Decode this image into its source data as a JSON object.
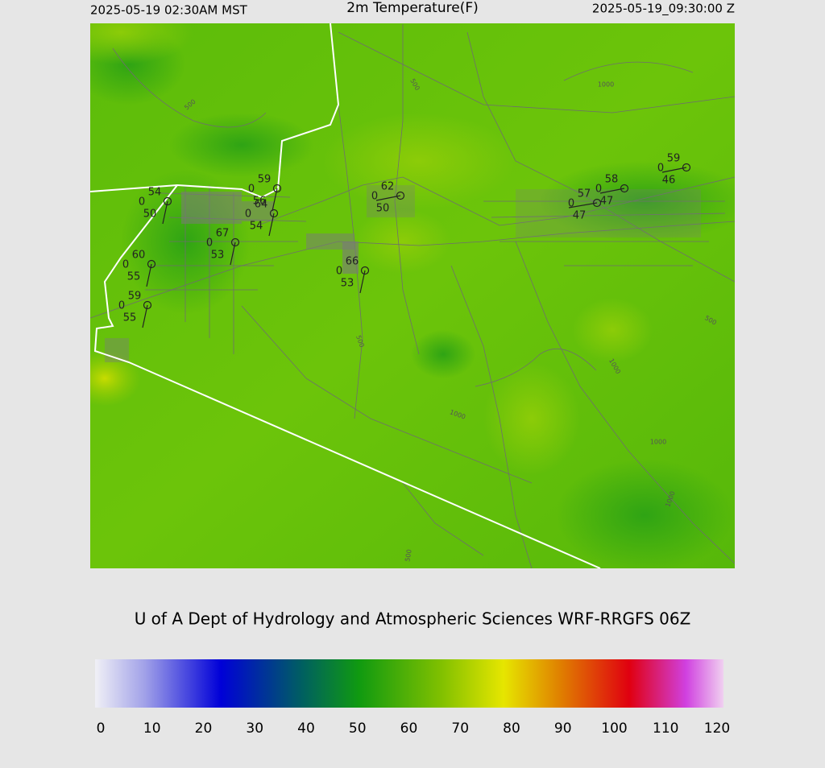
{
  "header": {
    "left": "2025-05-19 02:30AM MST",
    "title": "2m Temperature(F)",
    "right": "2025-05-19_09:30:00 Z"
  },
  "credit": "U of A Dept of Hydrology and Atmospheric Sciences WRF-RRGFS 06Z",
  "colorbar": {
    "ticks": [
      0,
      10,
      20,
      30,
      40,
      50,
      60,
      70,
      80,
      90,
      100,
      110,
      120
    ]
  },
  "stations": [
    {
      "temp": 54,
      "wind": 0,
      "dewpoint": 50
    },
    {
      "temp": 59,
      "wind": 0,
      "dewpoint": 56
    },
    {
      "temp": 64,
      "wind": 0,
      "dewpoint": 54
    },
    {
      "temp": 67,
      "wind": 0,
      "dewpoint": 53
    },
    {
      "temp": 60,
      "wind": 0,
      "dewpoint": 55
    },
    {
      "temp": 59,
      "wind": 0,
      "dewpoint": 55
    },
    {
      "temp": 66,
      "wind": 0,
      "dewpoint": 53
    },
    {
      "temp": 62,
      "wind": 0,
      "dewpoint": 50
    },
    {
      "temp": 57,
      "wind": 0,
      "dewpoint": 47
    },
    {
      "temp": 58,
      "wind": 0,
      "dewpoint": 47
    },
    {
      "temp": 59,
      "wind": 0,
      "dewpoint": 46
    }
  ],
  "contour_labels": [
    "500",
    "500",
    "500",
    "500",
    "500",
    "1000",
    "1000",
    "1000",
    "1000",
    "1000"
  ]
}
